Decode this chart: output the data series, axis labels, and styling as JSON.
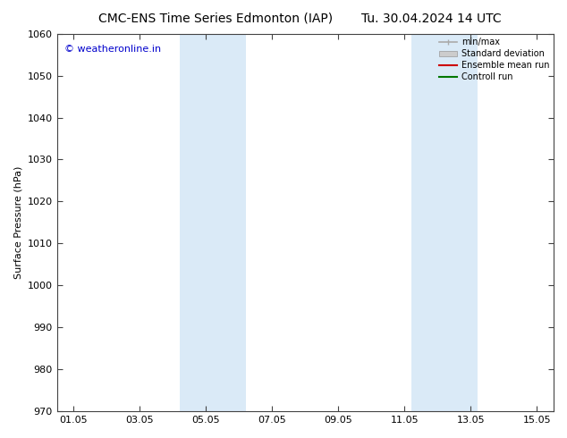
{
  "title_left": "CMC-ENS Time Series Edmonton (IAP)",
  "title_right": "Tu. 30.04.2024 14 UTC",
  "ylabel": "Surface Pressure (hPa)",
  "ylim": [
    970,
    1060
  ],
  "yticks": [
    970,
    980,
    990,
    1000,
    1010,
    1020,
    1030,
    1040,
    1050,
    1060
  ],
  "xtick_labels": [
    "01.05",
    "03.05",
    "05.05",
    "07.05",
    "09.05",
    "11.05",
    "13.05",
    "15.05"
  ],
  "xtick_positions": [
    0,
    2,
    4,
    6,
    8,
    10,
    12,
    14
  ],
  "xlim": [
    -0.5,
    14.5
  ],
  "watermark": "© weatheronline.in",
  "watermark_color": "#0000cc",
  "shaded_bands": [
    {
      "x_start": 3.2,
      "x_end": 5.2,
      "color": "#daeaf7"
    },
    {
      "x_start": 10.2,
      "x_end": 12.2,
      "color": "#daeaf7"
    }
  ],
  "legend_entries": [
    {
      "label": "min/max",
      "color": "#aaaaaa",
      "lw": 1.2,
      "ls": "-",
      "type": "line_tick"
    },
    {
      "label": "Standard deviation",
      "color": "#cccccc",
      "lw": 5,
      "ls": "-",
      "type": "patch"
    },
    {
      "label": "Ensemble mean run",
      "color": "#cc0000",
      "lw": 1.5,
      "ls": "-",
      "type": "line"
    },
    {
      "label": "Controll run",
      "color": "#007700",
      "lw": 1.5,
      "ls": "-",
      "type": "line"
    }
  ],
  "bg_color": "#ffffff",
  "title_fontsize": 10,
  "axis_fontsize": 8,
  "ylabel_fontsize": 8,
  "watermark_fontsize": 8
}
